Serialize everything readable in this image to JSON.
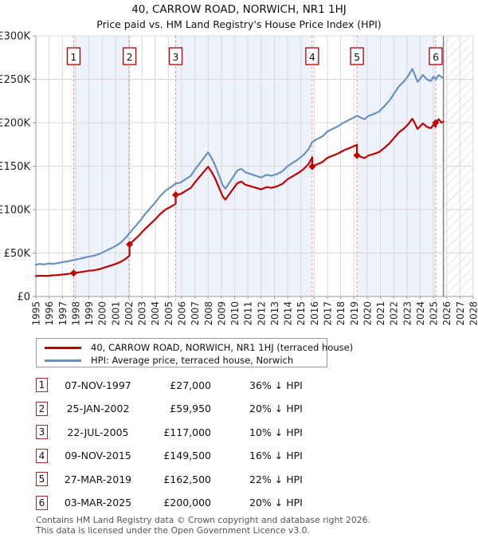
{
  "chart_data": {
    "type": "line",
    "title": "40, CARROW ROAD, NORWICH, NR1 1HJ",
    "subtitle": "Price paid vs. HM Land Registry's House Price Index (HPI)",
    "xlabel": "",
    "ylabel": "",
    "xlim": [
      1995,
      2028
    ],
    "ylim_k": [
      0,
      300
    ],
    "grid": true,
    "x_ticks": [
      1995,
      1996,
      1997,
      1998,
      1999,
      2000,
      2001,
      2002,
      2003,
      2004,
      2005,
      2006,
      2007,
      2008,
      2009,
      2010,
      2011,
      2012,
      2013,
      2014,
      2015,
      2016,
      2017,
      2018,
      2019,
      2020,
      2021,
      2022,
      2023,
      2024,
      2025,
      2026,
      2027,
      2028
    ],
    "y_ticks": [
      {
        "value_k": 0,
        "label": "£0"
      },
      {
        "value_k": 50,
        "label": "£50K"
      },
      {
        "value_k": 100,
        "label": "£100K"
      },
      {
        "value_k": 150,
        "label": "£150K"
      },
      {
        "value_k": 200,
        "label": "£200K"
      },
      {
        "value_k": 250,
        "label": "£250K"
      },
      {
        "value_k": 300,
        "label": "£300K"
      }
    ],
    "colors": {
      "price_line": "#c00000",
      "hpi_line": "#6991c4",
      "ownership_band": "#edf2fb",
      "sale_dash_line": "#ef8080",
      "grid_line": "#d9d9d9",
      "axis_line": "#9a9a9a",
      "hatch_line": "#cccccc",
      "number_box_border": "#aa0000"
    },
    "series": [
      {
        "name": "40, CARROW ROAD, NORWICH, NR1 1HJ (terraced house)",
        "color": "#c00000",
        "points_year_valueK": [
          [
            1995.0,
            23.5
          ],
          [
            1995.4,
            24.0
          ],
          [
            1995.8,
            23.7
          ],
          [
            1996.2,
            24.3
          ],
          [
            1996.6,
            24.6
          ],
          [
            1997.0,
            25.2
          ],
          [
            1997.4,
            26.0
          ],
          [
            1997.85,
            27.0
          ],
          [
            1998.2,
            27.7
          ],
          [
            1998.6,
            28.6
          ],
          [
            1999.0,
            29.6
          ],
          [
            1999.4,
            30.2
          ],
          [
            1999.8,
            31.5
          ],
          [
            2000.2,
            33.4
          ],
          [
            2000.6,
            35.4
          ],
          [
            2001.0,
            37.3
          ],
          [
            2001.4,
            39.9
          ],
          [
            2001.8,
            43.7
          ],
          [
            2002.07,
            47.0
          ],
          [
            2002.07,
            59.95
          ],
          [
            2002.4,
            64.9
          ],
          [
            2002.8,
            70.6
          ],
          [
            2003.2,
            77.2
          ],
          [
            2003.6,
            82.9
          ],
          [
            2004.0,
            88.7
          ],
          [
            2004.4,
            95.3
          ],
          [
            2004.8,
            100.2
          ],
          [
            2005.2,
            103.5
          ],
          [
            2005.55,
            106.7
          ],
          [
            2005.55,
            117.0
          ],
          [
            2005.9,
            117.9
          ],
          [
            2006.3,
            121.5
          ],
          [
            2006.7,
            125.1
          ],
          [
            2007.0,
            131.4
          ],
          [
            2007.4,
            138.6
          ],
          [
            2007.8,
            145.8
          ],
          [
            2008.0,
            149.4
          ],
          [
            2008.2,
            144.9
          ],
          [
            2008.5,
            136.8
          ],
          [
            2008.8,
            126.0
          ],
          [
            2009.1,
            115.2
          ],
          [
            2009.3,
            111.6
          ],
          [
            2009.6,
            117.9
          ],
          [
            2009.9,
            124.2
          ],
          [
            2010.2,
            130.5
          ],
          [
            2010.5,
            132.3
          ],
          [
            2010.8,
            128.7
          ],
          [
            2011.2,
            126.9
          ],
          [
            2011.6,
            125.1
          ],
          [
            2012.0,
            123.3
          ],
          [
            2012.4,
            126.0
          ],
          [
            2012.8,
            125.1
          ],
          [
            2013.2,
            126.9
          ],
          [
            2013.6,
            129.6
          ],
          [
            2014.0,
            135.0
          ],
          [
            2014.4,
            138.6
          ],
          [
            2014.8,
            142.2
          ],
          [
            2015.2,
            146.7
          ],
          [
            2015.6,
            153.0
          ],
          [
            2015.85,
            160.2
          ],
          [
            2015.85,
            149.5
          ],
          [
            2016.2,
            152.0
          ],
          [
            2016.6,
            154.6
          ],
          [
            2017.0,
            159.6
          ],
          [
            2017.4,
            162.1
          ],
          [
            2017.8,
            164.6
          ],
          [
            2018.2,
            168.0
          ],
          [
            2018.6,
            170.5
          ],
          [
            2019.0,
            173.0
          ],
          [
            2019.23,
            174.7
          ],
          [
            2019.23,
            162.5
          ],
          [
            2019.5,
            160.9
          ],
          [
            2019.8,
            159.3
          ],
          [
            2020.1,
            162.4
          ],
          [
            2020.5,
            164.0
          ],
          [
            2020.9,
            166.4
          ],
          [
            2021.3,
            171.0
          ],
          [
            2021.7,
            176.5
          ],
          [
            2022.0,
            182.0
          ],
          [
            2022.4,
            189.0
          ],
          [
            2022.8,
            193.7
          ],
          [
            2023.1,
            198.4
          ],
          [
            2023.4,
            204.6
          ],
          [
            2023.6,
            199.2
          ],
          [
            2023.8,
            192.9
          ],
          [
            2024.0,
            196.0
          ],
          [
            2024.2,
            199.2
          ],
          [
            2024.5,
            195.3
          ],
          [
            2024.8,
            193.7
          ],
          [
            2025.0,
            197.6
          ],
          [
            2025.17,
            195.3
          ],
          [
            2025.17,
            200.0
          ],
          [
            2025.4,
            204.0
          ],
          [
            2025.6,
            200.0
          ],
          [
            2025.75,
            201.5
          ]
        ]
      },
      {
        "name": "HPI: Average price, terraced house, Norwich",
        "color": "#6991c4",
        "points_year_valueK": [
          [
            1995.0,
            36.5
          ],
          [
            1995.3,
            37.5
          ],
          [
            1995.6,
            37.0
          ],
          [
            1996.0,
            38.0
          ],
          [
            1996.3,
            37.5
          ],
          [
            1996.7,
            38.5
          ],
          [
            1997.0,
            39.5
          ],
          [
            1997.4,
            40.5
          ],
          [
            1997.85,
            42.0
          ],
          [
            1998.2,
            43.0
          ],
          [
            1998.6,
            44.5
          ],
          [
            1999.0,
            46.0
          ],
          [
            1999.4,
            47.0
          ],
          [
            1999.8,
            49.0
          ],
          [
            2000.2,
            52.0
          ],
          [
            2000.6,
            55.0
          ],
          [
            2001.0,
            58.0
          ],
          [
            2001.4,
            62.0
          ],
          [
            2001.8,
            68.0
          ],
          [
            2002.07,
            73.0
          ],
          [
            2002.4,
            79.0
          ],
          [
            2002.8,
            86.0
          ],
          [
            2003.2,
            94.0
          ],
          [
            2003.6,
            101.0
          ],
          [
            2004.0,
            108.0
          ],
          [
            2004.4,
            116.0
          ],
          [
            2004.8,
            122.0
          ],
          [
            2005.2,
            126.0
          ],
          [
            2005.55,
            130.0
          ],
          [
            2005.9,
            131.0
          ],
          [
            2006.3,
            135.0
          ],
          [
            2006.7,
            139.0
          ],
          [
            2007.0,
            146.0
          ],
          [
            2007.4,
            154.0
          ],
          [
            2007.8,
            162.0
          ],
          [
            2008.0,
            166.0
          ],
          [
            2008.2,
            161.0
          ],
          [
            2008.5,
            152.0
          ],
          [
            2008.8,
            140.0
          ],
          [
            2009.1,
            128.0
          ],
          [
            2009.3,
            124.0
          ],
          [
            2009.6,
            131.0
          ],
          [
            2009.9,
            138.0
          ],
          [
            2010.2,
            145.0
          ],
          [
            2010.5,
            147.0
          ],
          [
            2010.8,
            143.0
          ],
          [
            2011.2,
            141.0
          ],
          [
            2011.6,
            139.0
          ],
          [
            2012.0,
            137.0
          ],
          [
            2012.4,
            140.0
          ],
          [
            2012.8,
            139.0
          ],
          [
            2013.2,
            141.0
          ],
          [
            2013.6,
            144.0
          ],
          [
            2014.0,
            150.0
          ],
          [
            2014.4,
            154.0
          ],
          [
            2014.8,
            158.0
          ],
          [
            2015.2,
            163.0
          ],
          [
            2015.6,
            170.0
          ],
          [
            2015.85,
            178.0
          ],
          [
            2016.2,
            181.0
          ],
          [
            2016.6,
            184.0
          ],
          [
            2017.0,
            190.0
          ],
          [
            2017.4,
            193.0
          ],
          [
            2017.8,
            196.0
          ],
          [
            2018.2,
            200.0
          ],
          [
            2018.6,
            203.0
          ],
          [
            2019.0,
            206.0
          ],
          [
            2019.23,
            208.0
          ],
          [
            2019.5,
            206.0
          ],
          [
            2019.8,
            204.0
          ],
          [
            2020.1,
            208.0
          ],
          [
            2020.5,
            210.0
          ],
          [
            2020.9,
            213.0
          ],
          [
            2021.3,
            219.0
          ],
          [
            2021.7,
            226.0
          ],
          [
            2022.0,
            233.0
          ],
          [
            2022.4,
            242.0
          ],
          [
            2022.8,
            248.0
          ],
          [
            2023.1,
            254.0
          ],
          [
            2023.4,
            262.0
          ],
          [
            2023.6,
            255.0
          ],
          [
            2023.8,
            247.0
          ],
          [
            2024.0,
            251.0
          ],
          [
            2024.2,
            255.0
          ],
          [
            2024.5,
            250.0
          ],
          [
            2024.8,
            248.0
          ],
          [
            2025.0,
            253.0
          ],
          [
            2025.17,
            250.0
          ],
          [
            2025.4,
            255.0
          ],
          [
            2025.75,
            251.0
          ]
        ]
      }
    ],
    "sale_events": [
      {
        "num": "1",
        "year": 1997.85,
        "price_k": 27.0,
        "date": "07-NOV-1997",
        "price": "£27,000",
        "vs_hpi": "36% ↓ HPI"
      },
      {
        "num": "2",
        "year": 2002.07,
        "price_k": 59.95,
        "date": "25-JAN-2002",
        "price": "£59,950",
        "vs_hpi": "20% ↓ HPI"
      },
      {
        "num": "3",
        "year": 2005.55,
        "price_k": 117.0,
        "date": "22-JUL-2005",
        "price": "£117,000",
        "vs_hpi": "10% ↓ HPI"
      },
      {
        "num": "4",
        "year": 2015.85,
        "price_k": 149.5,
        "date": "09-NOV-2015",
        "price": "£149,500",
        "vs_hpi": "16% ↓ HPI"
      },
      {
        "num": "5",
        "year": 2019.23,
        "price_k": 162.5,
        "date": "27-MAR-2019",
        "price": "£162,500",
        "vs_hpi": "22% ↓ HPI"
      },
      {
        "num": "6",
        "year": 2025.17,
        "price_k": 200.0,
        "date": "03-MAR-2025",
        "price": "£200,000",
        "vs_hpi": "20% ↓ HPI"
      }
    ],
    "ownership_bands": [
      [
        1997.85,
        2002.07
      ],
      [
        2005.55,
        2015.85
      ],
      [
        2019.23,
        2025.17
      ]
    ],
    "future_hatch_start": 2025.75,
    "legend_position": "below"
  },
  "footer": {
    "line1": "Contains HM Land Registry data © Crown copyright and database right 2026.",
    "line2": "This data is licensed under the Open Government Licence v3.0."
  }
}
